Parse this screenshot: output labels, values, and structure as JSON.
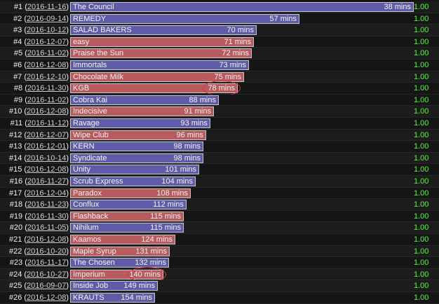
{
  "rows": [
    {
      "rank": "#1",
      "date": "2016-11-16",
      "team": "The Council",
      "time": "38 mins",
      "score": "1.00",
      "color": "blue"
    },
    {
      "rank": "#2",
      "date": "2016-09-14",
      "team": "REMEDY",
      "time": "57 mins",
      "score": "1.00",
      "color": "blue"
    },
    {
      "rank": "#3",
      "date": "2016-10-12",
      "team": "SALAD BAKERS",
      "time": "70 mins",
      "score": "1.00",
      "color": "blue"
    },
    {
      "rank": "#4",
      "date": "2016-12-07",
      "team": "easy",
      "time": "71 mins",
      "score": "1.00",
      "color": "red"
    },
    {
      "rank": "#5",
      "date": "2016-11-02",
      "team": "Praise the Sun",
      "time": "72 mins",
      "score": "1.00",
      "color": "red"
    },
    {
      "rank": "#6",
      "date": "2016-12-08",
      "team": "Immortals",
      "time": "73 mins",
      "score": "1.00",
      "color": "blue"
    },
    {
      "rank": "#7",
      "date": "2016-12-10",
      "team": "Chocolate Milk",
      "time": "75 mins",
      "score": "1.00",
      "color": "red"
    },
    {
      "rank": "#8",
      "date": "2016-11-30",
      "team": "KGB",
      "time": "78 mins",
      "score": "1.00",
      "color": "red",
      "circled": true
    },
    {
      "rank": "#9",
      "date": "2016-11-02",
      "team": "Cobra Kai",
      "time": "88 mins",
      "score": "1.00",
      "color": "blue"
    },
    {
      "rank": "#10",
      "date": "2016-12-08",
      "team": "Indecisive",
      "time": "91 mins",
      "score": "1.00",
      "color": "red"
    },
    {
      "rank": "#11",
      "date": "2016-11-12",
      "team": "Ravage",
      "time": "93 mins",
      "score": "1.00",
      "color": "blue"
    },
    {
      "rank": "#12",
      "date": "2016-12-07",
      "team": "Wipe Club",
      "time": "96 mins",
      "score": "1.00",
      "color": "red"
    },
    {
      "rank": "#13",
      "date": "2016-12-01",
      "team": "KERN",
      "time": "98 mins",
      "score": "1.00",
      "color": "blue"
    },
    {
      "rank": "#14",
      "date": "2016-10-14",
      "team": "Syndicate",
      "time": "98 mins",
      "score": "1.00",
      "color": "blue"
    },
    {
      "rank": "#15",
      "date": "2016-12-08",
      "team": "Unity",
      "time": "101 mins",
      "score": "1.00",
      "color": "blue"
    },
    {
      "rank": "#16",
      "date": "2016-11-27",
      "team": "Scrub Express",
      "time": "104 mins",
      "score": "1.00",
      "color": "blue"
    },
    {
      "rank": "#17",
      "date": "2016-12-04",
      "team": "Paradox",
      "time": "108 mins",
      "score": "1.00",
      "color": "red"
    },
    {
      "rank": "#18",
      "date": "2016-11-23",
      "team": "Conflux",
      "time": "112 mins",
      "score": "1.00",
      "color": "blue"
    },
    {
      "rank": "#19",
      "date": "2016-11-30",
      "team": "Flashback",
      "time": "115 mins",
      "score": "1.00",
      "color": "red"
    },
    {
      "rank": "#20",
      "date": "2016-11-05",
      "team": "Nihilum",
      "time": "115 mins",
      "score": "1.00",
      "color": "blue"
    },
    {
      "rank": "#21",
      "date": "2016-12-08",
      "team": "Kaamos",
      "time": "124 mins",
      "score": "1.00",
      "color": "red"
    },
    {
      "rank": "#22",
      "date": "2016-10-20",
      "team": "Maple Syrup",
      "time": "131 mins",
      "score": "1.00",
      "color": "red"
    },
    {
      "rank": "#23",
      "date": "2016-11-17",
      "team": "The Chosen",
      "time": "132 mins",
      "score": "1.00",
      "color": "blue"
    },
    {
      "rank": "#24",
      "date": "2016-10-27",
      "team": "Imperium",
      "time": "140 mins",
      "score": "1.00",
      "color": "red",
      "circled": true
    },
    {
      "rank": "#25",
      "date": "2016-09-07",
      "team": "Inside Job",
      "time": "149 mins",
      "score": "1.00",
      "color": "blue"
    },
    {
      "rank": "#26",
      "date": "2016-12-08",
      "team": "KRAUTS",
      "time": "154 mins",
      "score": "1.00",
      "color": "blue"
    }
  ],
  "time_values": [
    38,
    57,
    70,
    71,
    72,
    73,
    75,
    78,
    88,
    91,
    93,
    96,
    98,
    98,
    101,
    104,
    108,
    112,
    115,
    115,
    124,
    131,
    132,
    140,
    149,
    154
  ],
  "time_scale_max_mins": 38,
  "colors": {
    "blue": "#5e5ca8",
    "red": "#b85a5e",
    "score": "#4cff2a",
    "highlight": "#e0303a"
  }
}
